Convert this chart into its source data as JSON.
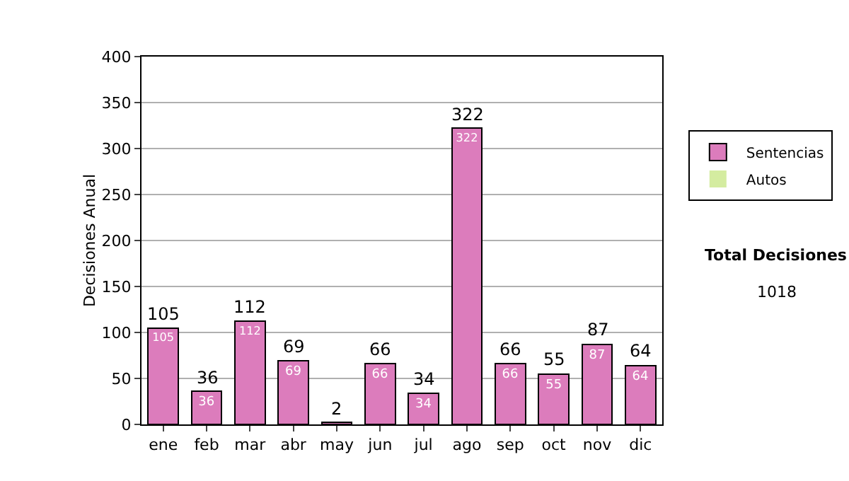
{
  "chart_data": {
    "type": "bar",
    "stacked": true,
    "ylabel": "Decisiones Anual",
    "categories": [
      "ene",
      "feb",
      "mar",
      "abr",
      "may",
      "jun",
      "jul",
      "ago",
      "sep",
      "oct",
      "nov",
      "dic"
    ],
    "series": [
      {
        "name": "Sentencias",
        "color": "#dc7cbc",
        "values": [
          105,
          36,
          112,
          69,
          2,
          66,
          34,
          322,
          66,
          55,
          87,
          64
        ],
        "value_labels": [
          "105",
          "36",
          "112",
          "69",
          null,
          "66",
          "34",
          "322",
          "66",
          "55",
          "87",
          "64"
        ]
      },
      {
        "name": "Autos",
        "color": "#d4eca0",
        "values": [
          0,
          0,
          0,
          0,
          0,
          0,
          0,
          0,
          0,
          0,
          0,
          0
        ]
      }
    ],
    "totals": [
      "105",
      "36",
      "112",
      "69",
      "2",
      "66",
      "34",
      "322",
      "66",
      "55",
      "87",
      "64"
    ],
    "ylim": [
      0,
      400
    ],
    "yticks": [
      0,
      50,
      100,
      150,
      200,
      250,
      300,
      350,
      400
    ],
    "grid": "y",
    "legend": "right",
    "annotations": [
      "Total Decisiones",
      "1018"
    ]
  }
}
